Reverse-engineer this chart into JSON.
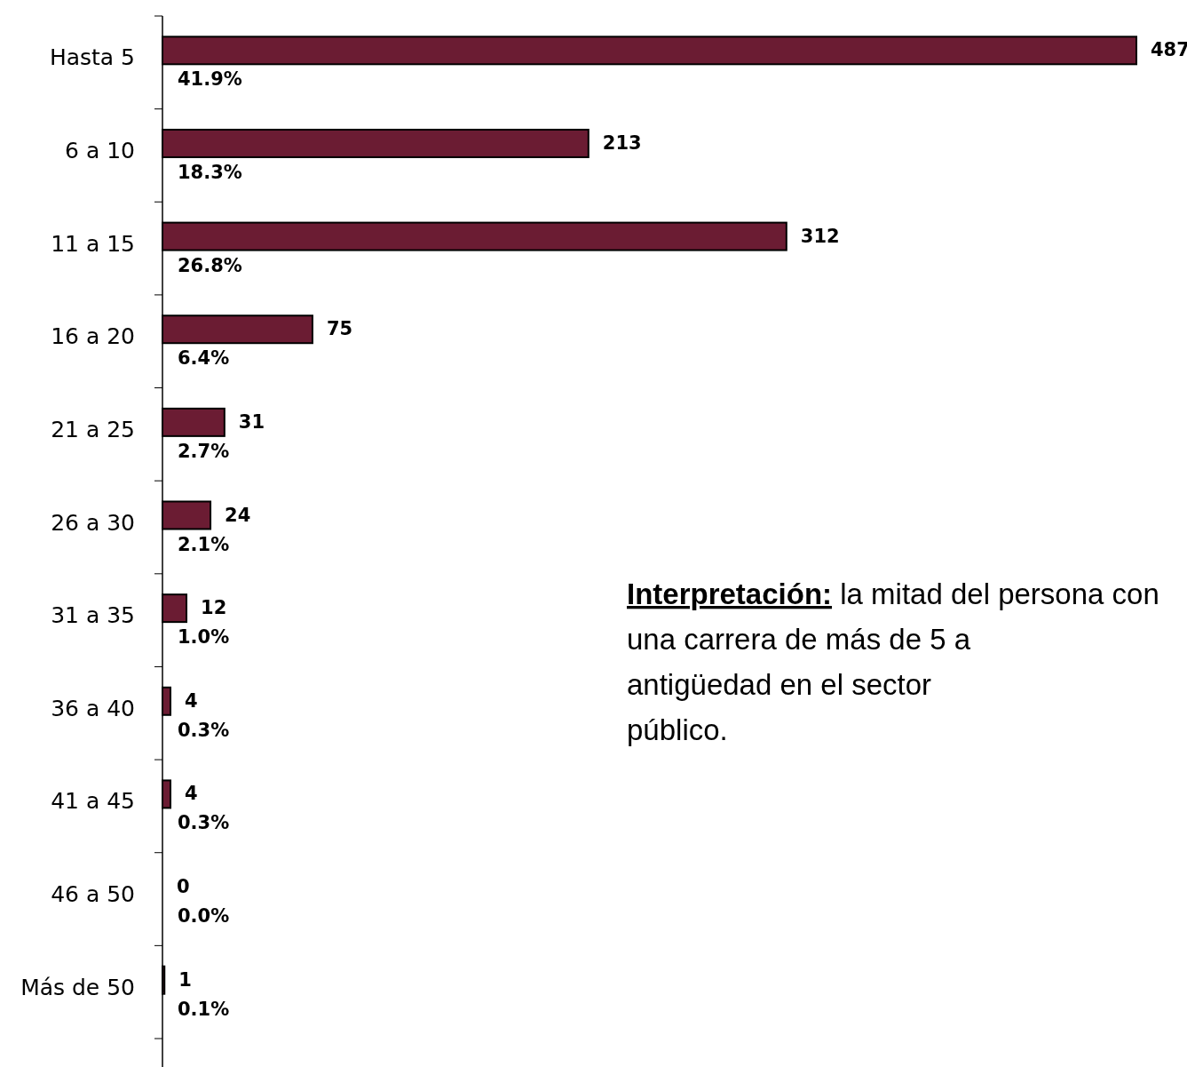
{
  "chart_data": {
    "type": "bar",
    "orientation": "horizontal",
    "categories": [
      "Hasta 5",
      "6 a 10",
      "11 a 15",
      "16 a 20",
      "21 a 25",
      "26 a 30",
      "31 a 35",
      "36 a 40",
      "41 a 45",
      "46 a 50",
      "Más de 50"
    ],
    "values": [
      487,
      213,
      312,
      75,
      31,
      24,
      12,
      4,
      4,
      0,
      1
    ],
    "color": "#6b1c33",
    "data_labels": true,
    "tick_labels": "y",
    "annotations": [
      "41.9%",
      "18.3%",
      "26.8%",
      "6.4%",
      "2.7%",
      "2.1%",
      "1.0%",
      "0.3%",
      "0.3%",
      "0.0%",
      "0.1%",
      "Interpretación: la mitad del persona con una carrera de más de 5 a antigüedad en el sector público."
    ]
  }
}
